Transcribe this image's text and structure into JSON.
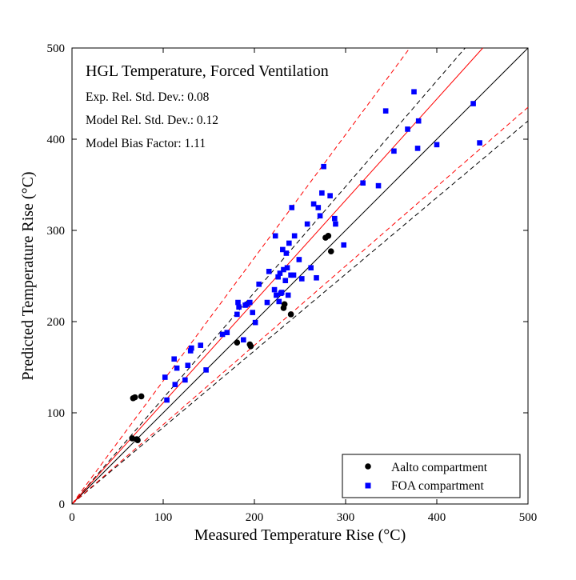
{
  "chart_data": {
    "type": "scatter",
    "title": "HGL Temperature, Forced Ventilation",
    "stats": [
      "Exp. Rel. Std. Dev.: 0.08",
      "Model Rel. Std. Dev.: 0.12",
      "Model Bias Factor: 1.11"
    ],
    "xlabel": "Measured Temperature Rise (°C)",
    "ylabel": "Predicted Temperature Rise (°C)",
    "xlim": [
      0,
      500
    ],
    "ylim": [
      0,
      500
    ],
    "xticks": [
      0,
      100,
      200,
      300,
      400,
      500
    ],
    "yticks": [
      0,
      100,
      200,
      300,
      400,
      500
    ],
    "grid": false,
    "legend_position": "bottom-right",
    "reference_lines": {
      "identity_slope": 1.0,
      "exp_band_slopes": [
        1.16,
        0.84
      ],
      "bias_slope": 1.11,
      "model_band_slopes": [
        1.35,
        0.87
      ],
      "colors": {
        "exp": "#000000",
        "model": "#ff0000"
      }
    },
    "series": [
      {
        "name": "Aalto compartment",
        "marker": "circle",
        "color": "#000000",
        "points": [
          [
            67,
            116
          ],
          [
            69,
            117
          ],
          [
            76,
            118
          ],
          [
            66,
            72
          ],
          [
            71,
            71
          ],
          [
            72,
            70
          ],
          [
            181,
            177
          ],
          [
            195,
            175
          ],
          [
            196,
            173
          ],
          [
            232,
            215
          ],
          [
            233,
            219
          ],
          [
            240,
            208
          ],
          [
            278,
            292
          ],
          [
            281,
            294
          ],
          [
            284,
            277
          ]
        ]
      },
      {
        "name": "FOA compartment",
        "marker": "square",
        "color": "#0000ff",
        "points": [
          [
            102,
            139
          ],
          [
            104,
            114
          ],
          [
            112,
            159
          ],
          [
            113,
            131
          ],
          [
            115,
            149
          ],
          [
            124,
            136
          ],
          [
            127,
            152
          ],
          [
            130,
            168
          ],
          [
            131,
            171
          ],
          [
            141,
            174
          ],
          [
            147,
            147
          ],
          [
            165,
            186
          ],
          [
            170,
            188
          ],
          [
            181,
            208
          ],
          [
            182,
            221
          ],
          [
            183,
            216
          ],
          [
            188,
            180
          ],
          [
            190,
            218
          ],
          [
            192,
            219
          ],
          [
            195,
            221
          ],
          [
            198,
            210
          ],
          [
            201,
            199
          ],
          [
            205,
            241
          ],
          [
            214,
            221
          ],
          [
            216,
            255
          ],
          [
            222,
            235
          ],
          [
            223,
            294
          ],
          [
            224,
            229
          ],
          [
            226,
            249
          ],
          [
            227,
            222
          ],
          [
            228,
            253
          ],
          [
            229,
            231
          ],
          [
            230,
            232
          ],
          [
            231,
            279
          ],
          [
            232,
            257
          ],
          [
            234,
            245
          ],
          [
            235,
            275
          ],
          [
            236,
            259
          ],
          [
            237,
            229
          ],
          [
            238,
            286
          ],
          [
            240,
            251
          ],
          [
            241,
            325
          ],
          [
            243,
            251
          ],
          [
            244,
            294
          ],
          [
            249,
            268
          ],
          [
            252,
            247
          ],
          [
            258,
            307
          ],
          [
            262,
            259
          ],
          [
            265,
            329
          ],
          [
            268,
            248
          ],
          [
            270,
            325
          ],
          [
            272,
            316
          ],
          [
            274,
            341
          ],
          [
            276,
            370
          ],
          [
            283,
            338
          ],
          [
            288,
            313
          ],
          [
            289,
            307
          ],
          [
            298,
            284
          ],
          [
            319,
            352
          ],
          [
            336,
            349
          ],
          [
            344,
            431
          ],
          [
            353,
            387
          ],
          [
            368,
            411
          ],
          [
            375,
            452
          ],
          [
            379,
            390
          ],
          [
            380,
            420
          ],
          [
            400,
            394
          ],
          [
            440,
            439
          ],
          [
            447,
            396
          ]
        ]
      }
    ]
  }
}
